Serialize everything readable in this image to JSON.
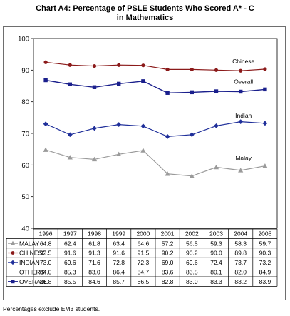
{
  "title_line1": "Chart A4:  Percentage of PSLE Students Who Scored A* - C",
  "title_line2": "in Mathematics",
  "footnote": "Percentages exclude EM3 students.",
  "colors": {
    "malay": "#9a9a9a",
    "chinese": "#8b1a1a",
    "indian": "#1f2f9a",
    "others": "#ffffff",
    "overall": "#1a1f8c"
  },
  "chart_data": {
    "type": "line",
    "x": [
      "1996",
      "1997",
      "1998",
      "1999",
      "2000",
      "2001",
      "2002",
      "2003",
      "2004",
      "2005"
    ],
    "ylim": [
      40,
      100
    ],
    "yticks": [
      40,
      50,
      60,
      70,
      80,
      90,
      100
    ],
    "grid": false,
    "series": [
      {
        "name": "MALAY",
        "label": "Malay",
        "marker": "triangle",
        "color": "#9a9a9a",
        "values": [
          64.8,
          62.4,
          61.8,
          63.4,
          64.6,
          57.2,
          56.5,
          59.3,
          58.3,
          59.7
        ]
      },
      {
        "name": "CHINESE",
        "label": "Chinese",
        "marker": "circle",
        "color": "#8b1a1a",
        "values": [
          92.5,
          91.6,
          91.3,
          91.6,
          91.5,
          90.2,
          90.2,
          90.0,
          89.8,
          90.3
        ]
      },
      {
        "name": "INDIAN",
        "label": "Indian",
        "marker": "diamond",
        "color": "#1f2f9a",
        "values": [
          73.0,
          69.6,
          71.6,
          72.8,
          72.3,
          69.0,
          69.6,
          72.4,
          73.7,
          73.2
        ]
      },
      {
        "name": "OTHERS",
        "label": "",
        "marker": "none",
        "color": "#ffffff",
        "values": [
          84.0,
          85.3,
          83.0,
          86.4,
          84.7,
          83.6,
          83.5,
          80.1,
          82.0,
          84.9
        ]
      },
      {
        "name": "OVERALL",
        "label": "Overall",
        "marker": "square",
        "color": "#1a1f8c",
        "values": [
          86.8,
          85.5,
          84.6,
          85.7,
          86.5,
          82.8,
          83.0,
          83.3,
          83.2,
          83.9
        ]
      }
    ],
    "table_values": {
      "MALAY": [
        "64.8",
        "62.4",
        "61.8",
        "63.4",
        "64.6",
        "57.2",
        "56.5",
        "59.3",
        "58.3",
        "59.7"
      ],
      "CHINESE": [
        "92.5",
        "91.6",
        "91.3",
        "91.6",
        "91.5",
        "90.2",
        "90.2",
        "90.0",
        "89.8",
        "90.3"
      ],
      "INDIAN": [
        "73.0",
        "69.6",
        "71.6",
        "72.8",
        "72.3",
        "69.0",
        "69.6",
        "72.4",
        "73.7",
        "73.2"
      ],
      "OTHERS": [
        "84.0",
        "85.3",
        "83.0",
        "86.4",
        "84.7",
        "83.6",
        "83.5",
        "80.1",
        "82.0",
        "84.9"
      ],
      "OVERALL": [
        "86.8",
        "85.5",
        "84.6",
        "85.7",
        "86.5",
        "82.8",
        "83.0",
        "83.3",
        "83.2",
        "83.9"
      ]
    }
  }
}
